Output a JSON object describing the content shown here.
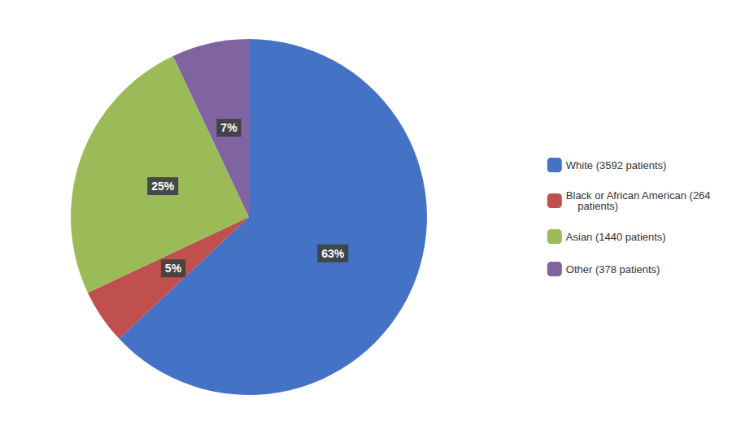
{
  "chart_data": {
    "type": "pie",
    "categories": [
      "White (3592 patients)",
      "Black or African American (264\n    patients)",
      "Asian (1440 patients)",
      "Other (378 patients)"
    ],
    "values": [
      63,
      5,
      25,
      7
    ],
    "value_labels": [
      "63%",
      "5%",
      "25%",
      "7%"
    ],
    "colors": [
      "#4472C4",
      "#C0504D",
      "#9BBB59",
      "#8064A2"
    ],
    "data_labels": true,
    "legend": "right"
  }
}
